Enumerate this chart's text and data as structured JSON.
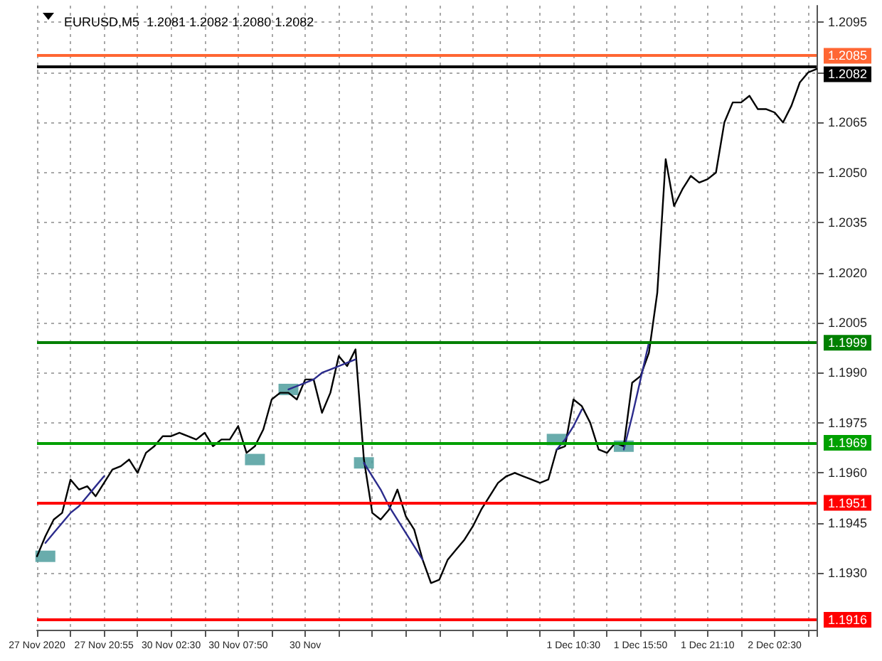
{
  "chart_data": {
    "type": "line",
    "title": "EURUSD,M5  1.2081 1.2082 1.2080 1.2082",
    "categories": [
      "27 Nov 2020",
      null,
      null,
      null,
      null,
      null,
      null,
      null,
      "27 Nov 20:55",
      null,
      null,
      null,
      null,
      null,
      null,
      null,
      "30 Nov 02:30",
      null,
      null,
      null,
      null,
      null,
      null,
      null,
      "30 Nov 07:50",
      null,
      null,
      null,
      null,
      null,
      null,
      null,
      "30 Nov",
      null,
      null,
      null,
      null,
      null,
      null,
      null,
      null,
      null,
      null,
      null,
      null,
      null,
      null,
      null,
      null,
      null,
      null,
      null,
      null,
      null,
      null,
      null,
      null,
      null,
      null,
      null,
      null,
      null,
      null,
      null,
      "1 Dec 10:30",
      null,
      null,
      null,
      null,
      null,
      null,
      null,
      "1 Dec 15:50",
      null,
      null,
      null,
      null,
      null,
      null,
      null,
      "1 Dec 21:10",
      null,
      null,
      null,
      null,
      null,
      null,
      null,
      "2 Dec 02:30",
      null,
      null,
      null,
      null,
      null
    ],
    "ylim": [
      1.1913,
      1.21
    ],
    "yticks": [
      {
        "value": 1.193,
        "label": "1.1930"
      },
      1.1945,
      {
        "value": 1.196,
        "label": "1.1960"
      },
      1.1975,
      {
        "value": 1.199,
        "label": "1.1990"
      },
      1.2005,
      {
        "value": 1.202,
        "label": "1.2020"
      },
      1.2035,
      {
        "value": 1.205,
        "label": "1.2050"
      },
      1.2065,
      {
        "value": 1.208,
        "label": null
      },
      1.2095
    ],
    "grid": true,
    "series": [
      {
        "type": "line",
        "color": "#000000",
        "marker": "none",
        "values": [
          1.1935,
          1.1941,
          1.1946,
          1.1948,
          1.1958,
          1.1955,
          1.1956,
          1.1953,
          1.1957,
          1.1961,
          1.1962,
          1.1964,
          1.196,
          1.1966,
          1.1968,
          1.1971,
          1.1971,
          1.1972,
          1.1971,
          1.197,
          1.1972,
          1.1968,
          1.197,
          1.197,
          1.1974,
          1.1966,
          1.1968,
          1.1973,
          1.1982,
          1.1984,
          1.1984,
          1.1982,
          1.1988,
          1.1988,
          1.1978,
          1.1984,
          1.1995,
          1.1992,
          1.1997,
          1.1964,
          1.1948,
          1.1946,
          1.1949,
          1.1955,
          1.1947,
          1.1943,
          1.1934,
          1.1927,
          1.1928,
          1.1934,
          1.1937,
          1.194,
          1.1944,
          1.1949,
          1.1953,
          1.1957,
          1.1959,
          1.196,
          1.1959,
          1.1958,
          1.1957,
          1.1958,
          1.1967,
          1.1968,
          1.1982,
          1.198,
          1.1975,
          1.1967,
          1.1966,
          1.1969,
          1.1968,
          1.1987,
          1.1989,
          1.1996,
          1.2014,
          1.2054,
          1.204,
          1.2045,
          1.2049,
          1.2047,
          1.2048,
          1.205,
          1.2065,
          1.2071,
          1.2071,
          1.2073,
          1.2069,
          1.2069,
          1.2068,
          1.2065,
          1.207,
          1.2077,
          1.208,
          1.2081
        ]
      },
      {
        "type": "line",
        "color": "#2b2b8c",
        "marker": "none",
        "values": [
          null,
          1.1939,
          1.1942,
          1.1945,
          1.1948,
          1.195,
          1.1953,
          1.1956,
          1.1959,
          null,
          null,
          null,
          null,
          null,
          null,
          null,
          null,
          null,
          null,
          null,
          null,
          null,
          null,
          null,
          null,
          null,
          null,
          null,
          null,
          null,
          null,
          null,
          null,
          null,
          null,
          null,
          null,
          null,
          null,
          null,
          null,
          null,
          null,
          null,
          null,
          null,
          null,
          null,
          null,
          null,
          null,
          null,
          null,
          null,
          null,
          null,
          null,
          null,
          null,
          null,
          null,
          null,
          null,
          null,
          null,
          null,
          null,
          null,
          null,
          null,
          null,
          null,
          null,
          null,
          null,
          null,
          null,
          null,
          null,
          null,
          null,
          null,
          null,
          null,
          null,
          null,
          null,
          null,
          null,
          null,
          null,
          null,
          null,
          null
        ]
      },
      {
        "type": "line",
        "color": "#2b2b8c",
        "marker": "none",
        "values": [
          null,
          null,
          null,
          null,
          null,
          null,
          null,
          null,
          null,
          null,
          null,
          null,
          null,
          null,
          null,
          null,
          null,
          null,
          null,
          null,
          null,
          null,
          null,
          null,
          null,
          null,
          null,
          null,
          null,
          null,
          1.1985,
          1.1986,
          1.1987,
          1.1988,
          1.199,
          1.1991,
          1.1992,
          1.1993,
          1.1994,
          null,
          null,
          null,
          null,
          null,
          null,
          null,
          null,
          null,
          null,
          null,
          null,
          null,
          null,
          null,
          null,
          null,
          null,
          null,
          null,
          null,
          null,
          null,
          null,
          null,
          null,
          null,
          null,
          null,
          null,
          null,
          null,
          null,
          null,
          null,
          null,
          null,
          null,
          null,
          null,
          null,
          null,
          null,
          null,
          null,
          null,
          null,
          null,
          null,
          null,
          null,
          null,
          null,
          null,
          null
        ]
      },
      {
        "type": "line",
        "color": "#2b2b8c",
        "marker": "none",
        "values": [
          null,
          null,
          null,
          null,
          null,
          null,
          null,
          null,
          null,
          null,
          null,
          null,
          null,
          null,
          null,
          null,
          null,
          null,
          null,
          null,
          null,
          null,
          null,
          null,
          null,
          null,
          null,
          null,
          null,
          null,
          null,
          null,
          null,
          null,
          null,
          null,
          null,
          null,
          null,
          1.1963,
          1.1959,
          1.1955,
          1.195,
          1.1946,
          1.1942,
          1.1938,
          1.1934,
          null,
          null,
          null,
          null,
          null,
          null,
          null,
          null,
          null,
          null,
          null,
          null,
          null,
          null,
          null,
          null,
          null,
          null,
          null,
          null,
          null,
          null,
          null,
          null,
          null,
          null,
          null,
          null,
          null,
          null,
          null,
          null,
          null,
          null,
          null,
          null,
          null,
          null,
          null,
          null,
          null,
          null,
          null,
          null,
          null,
          null,
          null
        ]
      },
      {
        "type": "line",
        "color": "#2b2b8c",
        "marker": "none",
        "values": [
          null,
          null,
          null,
          null,
          null,
          null,
          null,
          null,
          null,
          null,
          null,
          null,
          null,
          null,
          null,
          null,
          null,
          null,
          null,
          null,
          null,
          null,
          null,
          null,
          null,
          null,
          null,
          null,
          null,
          null,
          null,
          null,
          null,
          null,
          null,
          null,
          null,
          null,
          null,
          null,
          null,
          null,
          null,
          null,
          null,
          null,
          null,
          null,
          null,
          null,
          null,
          null,
          null,
          null,
          null,
          null,
          null,
          null,
          null,
          null,
          null,
          null,
          1.1967,
          1.197,
          1.1974,
          1.1979,
          null,
          null,
          null,
          null,
          null,
          null,
          null,
          null,
          null,
          null,
          null,
          null,
          null,
          null,
          null,
          null,
          null,
          null,
          null,
          null,
          null,
          null,
          null,
          null,
          null,
          null,
          null,
          null
        ]
      },
      {
        "type": "line",
        "color": "#2b2b8c",
        "marker": "none",
        "values": [
          null,
          null,
          null,
          null,
          null,
          null,
          null,
          null,
          null,
          null,
          null,
          null,
          null,
          null,
          null,
          null,
          null,
          null,
          null,
          null,
          null,
          null,
          null,
          null,
          null,
          null,
          null,
          null,
          null,
          null,
          null,
          null,
          null,
          null,
          null,
          null,
          null,
          null,
          null,
          null,
          null,
          null,
          null,
          null,
          null,
          null,
          null,
          null,
          null,
          null,
          null,
          null,
          null,
          null,
          null,
          null,
          null,
          null,
          null,
          null,
          null,
          null,
          null,
          null,
          null,
          null,
          null,
          null,
          null,
          null,
          1.1967,
          1.1977,
          1.1988,
          1.1999,
          null,
          null,
          null,
          null,
          null,
          null,
          null,
          null,
          null,
          null,
          null,
          null,
          null,
          null,
          null,
          null,
          null,
          null,
          null,
          null
        ]
      },
      {
        "type": "scatter",
        "color": "#4f9e9e",
        "marker": "square",
        "values": [
          null,
          1.1935,
          null,
          null,
          null,
          null,
          null,
          null,
          null,
          null,
          null,
          null,
          null,
          null,
          null,
          null,
          null,
          null,
          null,
          null,
          null,
          null,
          null,
          null,
          null,
          null,
          1.1964,
          null,
          null,
          null,
          1.1985,
          null,
          null,
          null,
          null,
          null,
          null,
          null,
          null,
          1.1963,
          null,
          null,
          null,
          null,
          null,
          null,
          null,
          null,
          null,
          null,
          null,
          null,
          null,
          null,
          null,
          null,
          null,
          null,
          null,
          null,
          null,
          null,
          1.197,
          null,
          null,
          null,
          null,
          null,
          null,
          null,
          1.1968,
          null,
          null,
          null,
          null,
          null,
          null,
          null,
          null,
          null,
          null,
          null,
          null,
          null,
          null,
          null,
          null,
          null,
          null,
          null,
          null,
          null,
          null,
          null
        ]
      }
    ],
    "ref_lines": [
      {
        "axis": "y",
        "value": 1.2085,
        "label": "1.2085",
        "color": "#ff6633"
      },
      {
        "axis": "y",
        "value": 1.2082,
        "label": "1.2082",
        "color": "#000000"
      },
      {
        "axis": "y",
        "value": 1.1999,
        "label": "1.1999",
        "color": "#008000"
      },
      {
        "axis": "y",
        "value": 1.1969,
        "label": "1.1969",
        "color": "#00a000"
      },
      {
        "axis": "y",
        "value": 1.1951,
        "label": "1.1951",
        "color": "#ff0000"
      },
      {
        "axis": "y",
        "value": 1.1916,
        "label": "1.1916",
        "color": "#ff0000"
      }
    ]
  }
}
